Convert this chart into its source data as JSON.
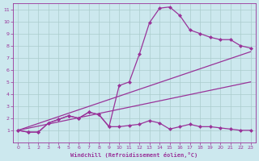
{
  "xlabel": "Windchill (Refroidissement éolien,°C)",
  "bg_color": "#cce8ee",
  "line_color": "#993399",
  "xlim": [
    -0.5,
    23.5
  ],
  "ylim": [
    0,
    11.5
  ],
  "xticks": [
    0,
    1,
    2,
    3,
    4,
    5,
    6,
    7,
    8,
    9,
    10,
    11,
    12,
    13,
    14,
    15,
    16,
    17,
    18,
    19,
    20,
    21,
    22,
    23
  ],
  "yticks": [
    1,
    2,
    3,
    4,
    5,
    6,
    7,
    8,
    9,
    10,
    11
  ],
  "grid_color": "#aacccc",
  "markersize": 2.5,
  "linewidth": 0.9,
  "series": [
    {
      "x": [
        0,
        1,
        2,
        3,
        4,
        5,
        6,
        7,
        8,
        9,
        10,
        11,
        12,
        13,
        14,
        15,
        16,
        17,
        18,
        19,
        20,
        21,
        22,
        23
      ],
      "y": [
        1.0,
        0.85,
        0.85,
        1.6,
        1.9,
        2.2,
        2.0,
        2.5,
        2.3,
        1.3,
        1.3,
        1.4,
        1.5,
        1.8,
        1.6,
        1.1,
        1.3,
        1.5,
        1.3,
        1.3,
        1.2,
        1.1,
        1.0,
        1.0
      ]
    },
    {
      "x": [
        0,
        1,
        2,
        3,
        4,
        5,
        6,
        7,
        8,
        9,
        10,
        11,
        12,
        13,
        14,
        15,
        16,
        17,
        18,
        19,
        20,
        21,
        22,
        23
      ],
      "y": [
        1.0,
        0.85,
        0.85,
        1.6,
        1.9,
        2.2,
        2.0,
        2.5,
        2.3,
        1.3,
        4.7,
        5.0,
        7.3,
        9.9,
        11.1,
        11.2,
        10.5,
        9.3,
        9.0,
        8.7,
        8.5,
        8.5,
        8.0,
        7.8
      ]
    },
    {
      "x": [
        0,
        23
      ],
      "y": [
        1.0,
        7.5
      ]
    },
    {
      "x": [
        0,
        23
      ],
      "y": [
        1.0,
        5.0
      ]
    }
  ]
}
